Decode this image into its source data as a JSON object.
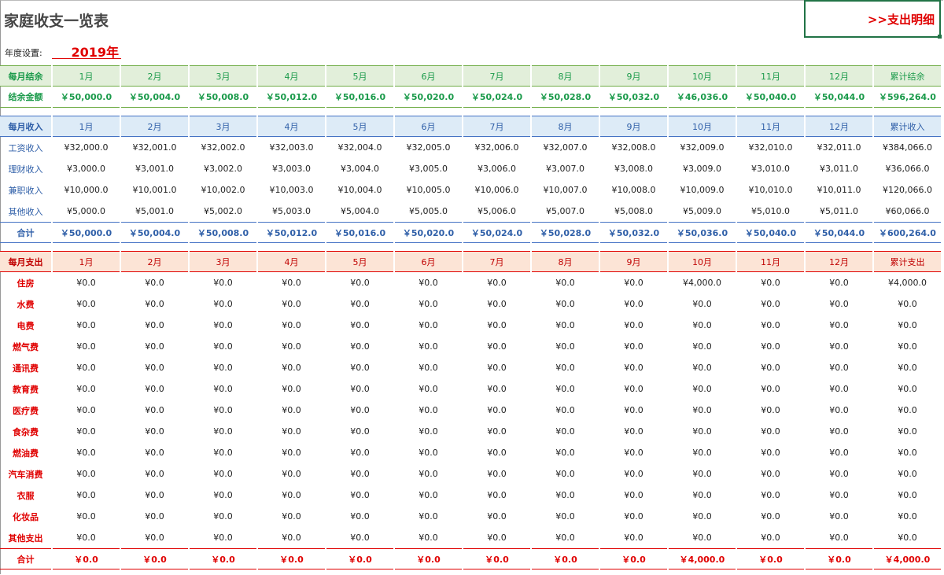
{
  "title": "家庭收支一览表",
  "link_label": ">>支出明细",
  "year_label": "年度设置:",
  "year_value": "2019年",
  "colors": {
    "balance": "#1a9a4a",
    "income": "#2f5fa8",
    "expense": "#e00000"
  },
  "balance": {
    "header": [
      "每月结余",
      "1月",
      "2月",
      "3月",
      "4月",
      "5月",
      "6月",
      "7月",
      "8月",
      "9月",
      "10月",
      "11月",
      "12月",
      "累计结余"
    ],
    "rows": [],
    "total": [
      "结余金额",
      "￥50,000.0",
      "￥50,004.0",
      "￥50,008.0",
      "￥50,012.0",
      "￥50,016.0",
      "￥50,020.0",
      "￥50,024.0",
      "￥50,028.0",
      "￥50,032.0",
      "￥46,036.0",
      "￥50,040.0",
      "￥50,044.0",
      "￥596,264.0"
    ]
  },
  "income": {
    "header": [
      "每月收入",
      "1月",
      "2月",
      "3月",
      "4月",
      "5月",
      "6月",
      "7月",
      "8月",
      "9月",
      "10月",
      "11月",
      "12月",
      "累计收入"
    ],
    "rows": [
      [
        "工资收入",
        "¥32,000.0",
        "¥32,001.0",
        "¥32,002.0",
        "¥32,003.0",
        "¥32,004.0",
        "¥32,005.0",
        "¥32,006.0",
        "¥32,007.0",
        "¥32,008.0",
        "¥32,009.0",
        "¥32,010.0",
        "¥32,011.0",
        "¥384,066.0"
      ],
      [
        "理财收入",
        "¥3,000.0",
        "¥3,001.0",
        "¥3,002.0",
        "¥3,003.0",
        "¥3,004.0",
        "¥3,005.0",
        "¥3,006.0",
        "¥3,007.0",
        "¥3,008.0",
        "¥3,009.0",
        "¥3,010.0",
        "¥3,011.0",
        "¥36,066.0"
      ],
      [
        "兼职收入",
        "¥10,000.0",
        "¥10,001.0",
        "¥10,002.0",
        "¥10,003.0",
        "¥10,004.0",
        "¥10,005.0",
        "¥10,006.0",
        "¥10,007.0",
        "¥10,008.0",
        "¥10,009.0",
        "¥10,010.0",
        "¥10,011.0",
        "¥120,066.0"
      ],
      [
        "其他收入",
        "¥5,000.0",
        "¥5,001.0",
        "¥5,002.0",
        "¥5,003.0",
        "¥5,004.0",
        "¥5,005.0",
        "¥5,006.0",
        "¥5,007.0",
        "¥5,008.0",
        "¥5,009.0",
        "¥5,010.0",
        "¥5,011.0",
        "¥60,066.0"
      ]
    ],
    "total": [
      "合计",
      "￥50,000.0",
      "￥50,004.0",
      "￥50,008.0",
      "￥50,012.0",
      "￥50,016.0",
      "￥50,020.0",
      "￥50,024.0",
      "￥50,028.0",
      "￥50,032.0",
      "￥50,036.0",
      "￥50,040.0",
      "￥50,044.0",
      "￥600,264.0"
    ]
  },
  "expense": {
    "header": [
      "每月支出",
      "1月",
      "2月",
      "3月",
      "4月",
      "5月",
      "6月",
      "7月",
      "8月",
      "9月",
      "10月",
      "11月",
      "12月",
      "累计支出"
    ],
    "rows": [
      [
        "住房",
        "¥0.0",
        "¥0.0",
        "¥0.0",
        "¥0.0",
        "¥0.0",
        "¥0.0",
        "¥0.0",
        "¥0.0",
        "¥0.0",
        "¥4,000.0",
        "¥0.0",
        "¥0.0",
        "¥4,000.0"
      ],
      [
        "水费",
        "¥0.0",
        "¥0.0",
        "¥0.0",
        "¥0.0",
        "¥0.0",
        "¥0.0",
        "¥0.0",
        "¥0.0",
        "¥0.0",
        "¥0.0",
        "¥0.0",
        "¥0.0",
        "¥0.0"
      ],
      [
        "电费",
        "¥0.0",
        "¥0.0",
        "¥0.0",
        "¥0.0",
        "¥0.0",
        "¥0.0",
        "¥0.0",
        "¥0.0",
        "¥0.0",
        "¥0.0",
        "¥0.0",
        "¥0.0",
        "¥0.0"
      ],
      [
        "燃气费",
        "¥0.0",
        "¥0.0",
        "¥0.0",
        "¥0.0",
        "¥0.0",
        "¥0.0",
        "¥0.0",
        "¥0.0",
        "¥0.0",
        "¥0.0",
        "¥0.0",
        "¥0.0",
        "¥0.0"
      ],
      [
        "通讯费",
        "¥0.0",
        "¥0.0",
        "¥0.0",
        "¥0.0",
        "¥0.0",
        "¥0.0",
        "¥0.0",
        "¥0.0",
        "¥0.0",
        "¥0.0",
        "¥0.0",
        "¥0.0",
        "¥0.0"
      ],
      [
        "教育费",
        "¥0.0",
        "¥0.0",
        "¥0.0",
        "¥0.0",
        "¥0.0",
        "¥0.0",
        "¥0.0",
        "¥0.0",
        "¥0.0",
        "¥0.0",
        "¥0.0",
        "¥0.0",
        "¥0.0"
      ],
      [
        "医疗费",
        "¥0.0",
        "¥0.0",
        "¥0.0",
        "¥0.0",
        "¥0.0",
        "¥0.0",
        "¥0.0",
        "¥0.0",
        "¥0.0",
        "¥0.0",
        "¥0.0",
        "¥0.0",
        "¥0.0"
      ],
      [
        "食杂费",
        "¥0.0",
        "¥0.0",
        "¥0.0",
        "¥0.0",
        "¥0.0",
        "¥0.0",
        "¥0.0",
        "¥0.0",
        "¥0.0",
        "¥0.0",
        "¥0.0",
        "¥0.0",
        "¥0.0"
      ],
      [
        "燃油费",
        "¥0.0",
        "¥0.0",
        "¥0.0",
        "¥0.0",
        "¥0.0",
        "¥0.0",
        "¥0.0",
        "¥0.0",
        "¥0.0",
        "¥0.0",
        "¥0.0",
        "¥0.0",
        "¥0.0"
      ],
      [
        "汽车消费",
        "¥0.0",
        "¥0.0",
        "¥0.0",
        "¥0.0",
        "¥0.0",
        "¥0.0",
        "¥0.0",
        "¥0.0",
        "¥0.0",
        "¥0.0",
        "¥0.0",
        "¥0.0",
        "¥0.0"
      ],
      [
        "衣服",
        "¥0.0",
        "¥0.0",
        "¥0.0",
        "¥0.0",
        "¥0.0",
        "¥0.0",
        "¥0.0",
        "¥0.0",
        "¥0.0",
        "¥0.0",
        "¥0.0",
        "¥0.0",
        "¥0.0"
      ],
      [
        "化妆品",
        "¥0.0",
        "¥0.0",
        "¥0.0",
        "¥0.0",
        "¥0.0",
        "¥0.0",
        "¥0.0",
        "¥0.0",
        "¥0.0",
        "¥0.0",
        "¥0.0",
        "¥0.0",
        "¥0.0"
      ],
      [
        "其他支出",
        "¥0.0",
        "¥0.0",
        "¥0.0",
        "¥0.0",
        "¥0.0",
        "¥0.0",
        "¥0.0",
        "¥0.0",
        "¥0.0",
        "¥0.0",
        "¥0.0",
        "¥0.0",
        "¥0.0"
      ]
    ],
    "total": [
      "合计",
      "￥0.0",
      "￥0.0",
      "￥0.0",
      "￥0.0",
      "￥0.0",
      "￥0.0",
      "￥0.0",
      "￥0.0",
      "￥0.0",
      "￥4,000.0",
      "￥0.0",
      "￥0.0",
      "￥4,000.0"
    ]
  }
}
